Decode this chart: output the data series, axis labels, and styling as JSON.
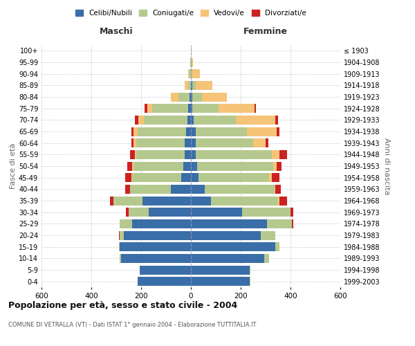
{
  "age_groups": [
    "0-4",
    "5-9",
    "10-14",
    "15-19",
    "20-24",
    "25-29",
    "30-34",
    "35-39",
    "40-44",
    "45-49",
    "50-54",
    "55-59",
    "60-64",
    "65-69",
    "70-74",
    "75-79",
    "80-84",
    "85-89",
    "90-94",
    "95-99",
    "100+"
  ],
  "birth_years": [
    "1999-2003",
    "1994-1998",
    "1989-1993",
    "1984-1988",
    "1979-1983",
    "1974-1978",
    "1969-1973",
    "1964-1968",
    "1959-1963",
    "1954-1958",
    "1949-1953",
    "1944-1948",
    "1939-1943",
    "1934-1938",
    "1929-1933",
    "1924-1928",
    "1919-1923",
    "1914-1918",
    "1909-1913",
    "1904-1908",
    "≤ 1903"
  ],
  "male": {
    "celibi": [
      215,
      205,
      280,
      285,
      270,
      235,
      170,
      195,
      80,
      40,
      30,
      25,
      25,
      20,
      15,
      10,
      5,
      0,
      0,
      0,
      0
    ],
    "coniugati": [
      0,
      0,
      5,
      5,
      15,
      50,
      80,
      115,
      165,
      195,
      200,
      195,
      195,
      195,
      175,
      145,
      45,
      10,
      5,
      2,
      0
    ],
    "vedovi": [
      0,
      0,
      0,
      0,
      0,
      0,
      0,
      0,
      0,
      5,
      5,
      5,
      10,
      15,
      20,
      20,
      30,
      15,
      5,
      0,
      0
    ],
    "divorziati": [
      0,
      0,
      0,
      0,
      5,
      0,
      10,
      15,
      20,
      25,
      20,
      20,
      10,
      10,
      15,
      10,
      0,
      0,
      0,
      0,
      0
    ]
  },
  "female": {
    "nubili": [
      235,
      235,
      295,
      340,
      280,
      305,
      205,
      80,
      55,
      30,
      25,
      20,
      20,
      20,
      10,
      5,
      5,
      5,
      0,
      0,
      0
    ],
    "coniugate": [
      5,
      5,
      20,
      15,
      60,
      100,
      195,
      270,
      280,
      285,
      305,
      305,
      230,
      205,
      170,
      105,
      40,
      15,
      5,
      2,
      0
    ],
    "vedove": [
      0,
      0,
      0,
      0,
      0,
      0,
      0,
      5,
      5,
      10,
      15,
      30,
      50,
      120,
      160,
      145,
      100,
      65,
      30,
      5,
      2
    ],
    "divorziate": [
      0,
      0,
      0,
      0,
      0,
      5,
      10,
      30,
      20,
      30,
      20,
      30,
      10,
      10,
      10,
      5,
      0,
      0,
      0,
      0,
      0
    ]
  },
  "colors": {
    "celibi": "#3a6ea8",
    "coniugati": "#b5c98e",
    "vedovi": "#f5c478",
    "divorziati": "#cc2222"
  },
  "title": "Popolazione per età, sesso e stato civile - 2004",
  "subtitle": "COMUNE DI VETRALLA (VT) - Dati ISTAT 1° gennaio 2004 - Elaborazione TUTTITALIA.IT",
  "xlabel_left": "Maschi",
  "xlabel_right": "Femmine",
  "ylabel_left": "Fasce di età",
  "ylabel_right": "Anni di nascita",
  "xlim": 600,
  "legend_labels": [
    "Celibi/Nubili",
    "Coniugati/e",
    "Vedovi/e",
    "Divorziati/e"
  ],
  "background_color": "#ffffff",
  "bar_height": 0.78
}
